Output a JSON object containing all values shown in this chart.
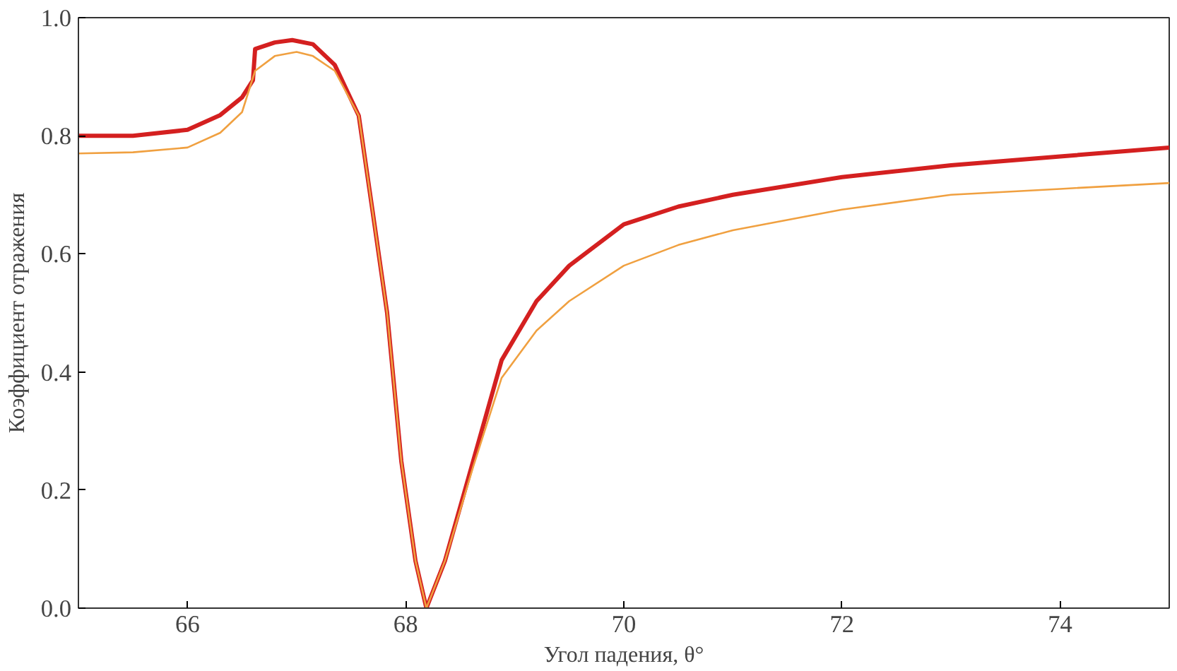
{
  "chart_data": {
    "type": "line",
    "xlabel": "Угол падения, θ°",
    "ylabel": "Коэффициент отражения",
    "xlim": [
      65,
      75
    ],
    "ylim": [
      0,
      1.0
    ],
    "xticks": [
      66,
      68,
      70,
      72,
      74
    ],
    "yticks": [
      {
        "value": 0,
        "label": "0.0"
      },
      0.2,
      0.4,
      0.6,
      0.8,
      {
        "value": 1.0,
        "label": "1.0"
      }
    ],
    "grid": false,
    "marker": "none",
    "line_style": "solid",
    "series": [
      {
        "color": "#d42020",
        "x": [
          65,
          65.5,
          66,
          66.3,
          66.5,
          66.6,
          66.62,
          66.8,
          66.96,
          67.15,
          67.35,
          67.57,
          67.7,
          67.83,
          67.96,
          68.09,
          68.19,
          68.36,
          68.62,
          68.88,
          69.2,
          69.5,
          70,
          70.5,
          71,
          72,
          73,
          74,
          75
        ],
        "values": [
          0.8,
          0.8,
          0.81,
          0.835,
          0.865,
          0.894,
          0.947,
          0.958,
          0.962,
          0.955,
          0.92,
          0.834,
          0.668,
          0.5,
          0.249,
          0.08,
          0.0,
          0.08,
          0.25,
          0.42,
          0.52,
          0.58,
          0.65,
          0.68,
          0.7,
          0.73,
          0.75,
          0.765,
          0.78
        ]
      },
      {
        "color": "#f0a040",
        "x": [
          65,
          65.5,
          66,
          66.3,
          66.5,
          66.62,
          66.8,
          67.0,
          67.15,
          67.35,
          67.57,
          67.7,
          67.83,
          67.96,
          68.09,
          68.19,
          68.36,
          68.62,
          68.88,
          69.2,
          69.5,
          70,
          70.5,
          71,
          72,
          73,
          74,
          75
        ],
        "values": [
          0.77,
          0.772,
          0.78,
          0.805,
          0.84,
          0.91,
          0.935,
          0.942,
          0.935,
          0.91,
          0.834,
          0.668,
          0.5,
          0.249,
          0.08,
          0.0,
          0.08,
          0.24,
          0.39,
          0.47,
          0.52,
          0.58,
          0.615,
          0.64,
          0.675,
          0.7,
          0.71,
          0.72
        ]
      }
    ]
  }
}
